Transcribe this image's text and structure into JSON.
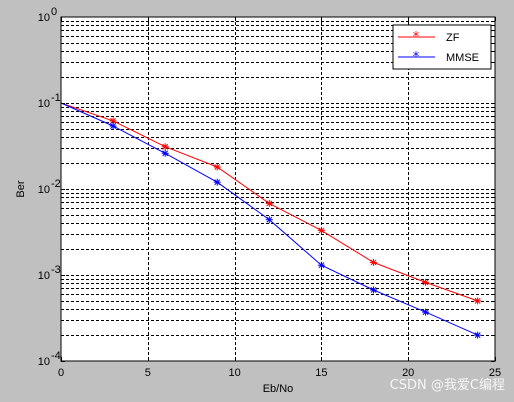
{
  "chart_data": {
    "type": "line",
    "title": "",
    "xlabel": "Eb/No",
    "ylabel": "Ber",
    "xlim": [
      0,
      25
    ],
    "ylim": [
      0.0001,
      1
    ],
    "yscale": "log",
    "grid": true,
    "legend_position": "top-right",
    "x_ticks": [
      "0",
      "5",
      "10",
      "15",
      "20",
      "25"
    ],
    "y_ticks": [
      {
        "base": "10",
        "exp": "0"
      },
      {
        "base": "10",
        "exp": "-1"
      },
      {
        "base": "10",
        "exp": "-2"
      },
      {
        "base": "10",
        "exp": "-3"
      },
      {
        "base": "10",
        "exp": "-4"
      }
    ],
    "x": [
      0,
      3,
      6,
      9,
      12,
      15,
      18,
      21,
      24
    ],
    "series": [
      {
        "name": "ZF",
        "color": "#ff0000",
        "marker": "asterisk",
        "values": [
          0.1,
          0.062,
          0.031,
          0.018,
          0.0068,
          0.0033,
          0.0014,
          0.00082,
          0.0005
        ]
      },
      {
        "name": "MMSE",
        "color": "#0000ff",
        "marker": "asterisk",
        "values": [
          0.1,
          0.054,
          0.026,
          0.012,
          0.0044,
          0.0013,
          0.00067,
          0.00037,
          0.0002
        ]
      }
    ]
  },
  "watermark": "CSDN @我爱C编程"
}
